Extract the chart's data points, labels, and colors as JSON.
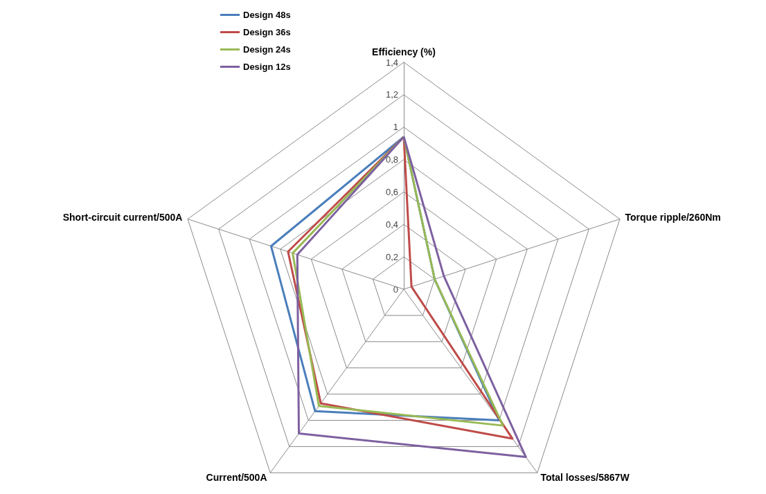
{
  "chart_data": {
    "type": "radar",
    "categories": [
      "Efficiency (%)",
      "Torque ripple/260Nm",
      "Total losses/5867W",
      "Current/500A",
      "Short-circuit current/500A"
    ],
    "series": [
      {
        "name": "Design 48s",
        "color": "#4a7ebb",
        "values": [
          0.94,
          0.2,
          1.0,
          0.93,
          0.86
        ]
      },
      {
        "name": "Design 36s",
        "color": "#be4b48",
        "values": [
          0.94,
          0.05,
          1.14,
          0.87,
          0.75
        ]
      },
      {
        "name": "Design 24s",
        "color": "#98b954",
        "values": [
          0.94,
          0.2,
          1.04,
          0.89,
          0.72
        ]
      },
      {
        "name": "Design 12s",
        "color": "#7d60a0",
        "values": [
          0.94,
          0.26,
          1.28,
          1.1,
          0.69
        ]
      }
    ],
    "ylim": [
      0,
      1.4
    ],
    "yticks": [
      0,
      {
        "value": 0.2,
        "label": "0,2"
      },
      {
        "value": 0.4,
        "label": "0,4"
      },
      {
        "value": 0.6,
        "label": "0,6"
      },
      {
        "value": 0.8,
        "label": "0,8"
      },
      1,
      {
        "value": 1.2,
        "label": "1,2"
      },
      {
        "value": 1.4,
        "label": "1,4"
      }
    ],
    "grid": true,
    "legend": "top left",
    "marker": "none",
    "line_style": "solid"
  }
}
